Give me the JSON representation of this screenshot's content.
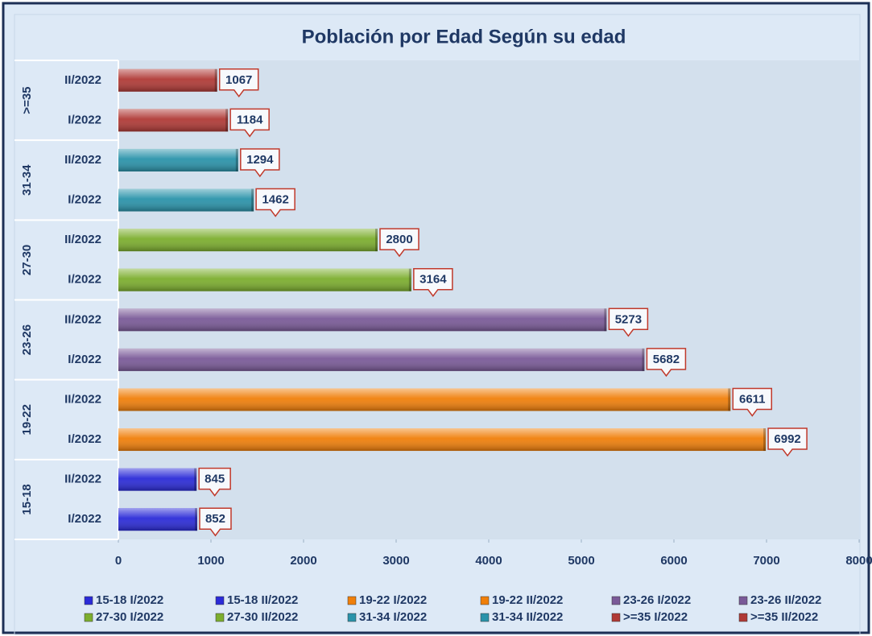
{
  "chart_data": {
    "type": "bar",
    "orientation": "horizontal",
    "title": "Población por Edad Según su edad",
    "xlim": [
      0,
      8000
    ],
    "xticks": [
      0,
      1000,
      2000,
      3000,
      4000,
      5000,
      6000,
      7000,
      8000
    ],
    "legend": "bottom",
    "series": [
      {
        "name": "15-18 I/2022",
        "group": "15-18",
        "category": "I/2022",
        "color": "#2b2bd8",
        "values": [
          852
        ]
      },
      {
        "name": "15-18 II/2022",
        "group": "15-18",
        "category": "II/2022",
        "color": "#2b2bd8",
        "values": [
          845
        ]
      },
      {
        "name": "19-22 I/2022",
        "group": "19-22",
        "category": "I/2022",
        "color": "#f07f0a",
        "values": [
          6992
        ]
      },
      {
        "name": "19-22 II/2022",
        "group": "19-22",
        "category": "II/2022",
        "color": "#f07f0a",
        "values": [
          6611
        ]
      },
      {
        "name": "23-26 I/2022",
        "group": "23-26",
        "category": "I/2022",
        "color": "#7a5a98",
        "values": [
          5682
        ]
      },
      {
        "name": "23-26 II/2022",
        "group": "23-26",
        "category": "II/2022",
        "color": "#7a5a98",
        "values": [
          5273
        ]
      },
      {
        "name": "27-30 I/2022",
        "group": "27-30",
        "category": "I/2022",
        "color": "#7cae2e",
        "values": [
          3164
        ]
      },
      {
        "name": "27-30 II/2022",
        "group": "27-30",
        "category": "II/2022",
        "color": "#7cae2e",
        "values": [
          2800
        ]
      },
      {
        "name": "31-34 I/2022",
        "group": "31-34",
        "category": "I/2022",
        "color": "#2a93aa",
        "values": [
          1462
        ]
      },
      {
        "name": "31-34 II/2022",
        "group": "31-34",
        "category": "II/2022",
        "color": "#2a93aa",
        "values": [
          1294
        ]
      },
      {
        "name": ">=35 I/2022",
        "group": ">=35",
        "category": "I/2022",
        "color": "#b03a36",
        "values": [
          1184
        ]
      },
      {
        "name": ">=35 II/2022",
        "group": ">=35",
        "category": "II/2022",
        "color": "#b03a36",
        "values": [
          1067
        ]
      }
    ]
  }
}
